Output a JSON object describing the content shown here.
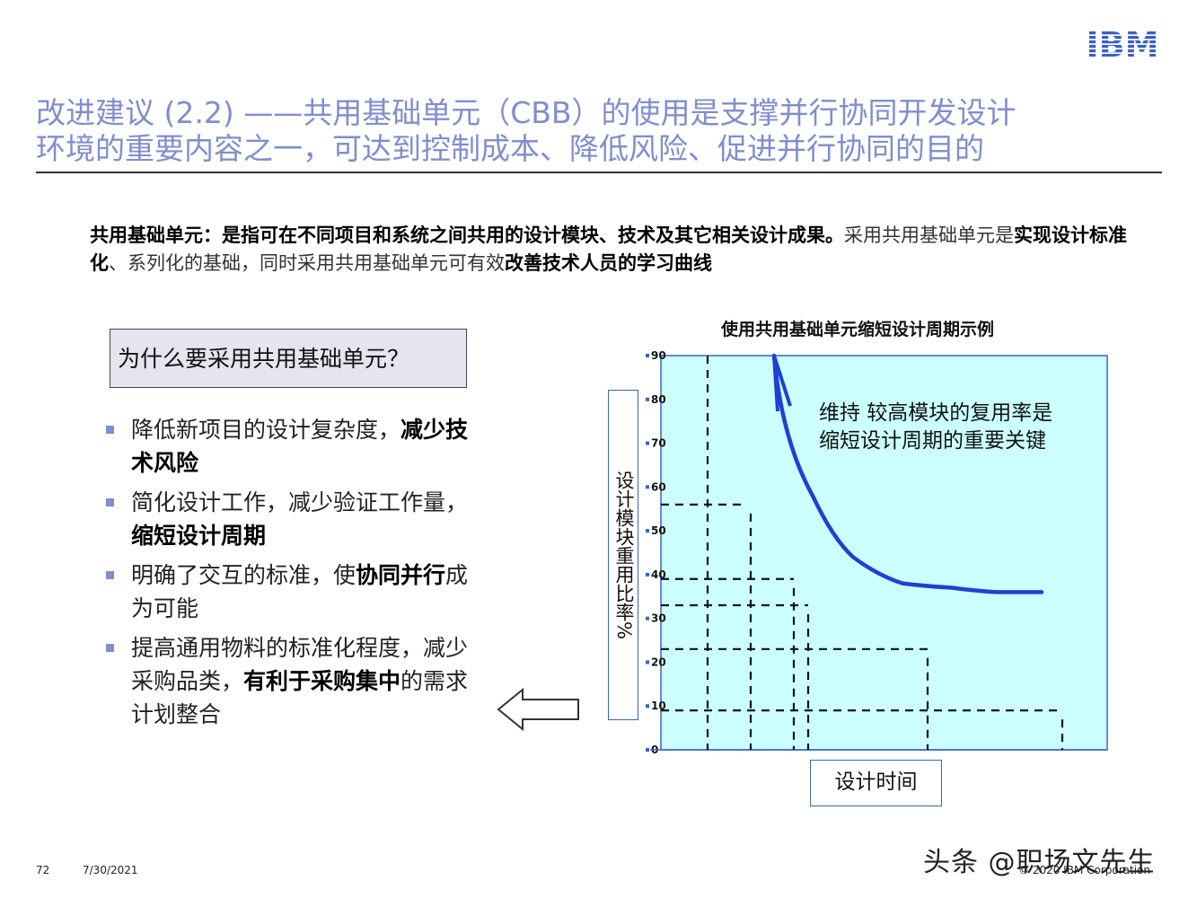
{
  "brand": {
    "logo_text": "IBM",
    "color": "#3a5fc8"
  },
  "header": {
    "title_line1": "改进建议 (2.2) ——共用基础单元（CBB）的使用是支撑并行协同开发设计",
    "title_line2": "环境的重要内容之一，可达到控制成本、降低风险、促进并行协同的目的",
    "title_color": "#7f8ed0"
  },
  "intro": {
    "part1_bold": "共用基础单元：是指可在不同项目和系统之间共用的设计模块、技术及其它相关设计成果。",
    "part2": "采用共用基础单元是",
    "part3_bold": "实现设计标准化",
    "part4": "、系列化的基础，同时采用共用基础单元可有效",
    "part5_bold": "改善技术人员的学习曲线"
  },
  "why": {
    "question": "为什么要采用共用基础单元？"
  },
  "bullets": [
    {
      "text": "降低新项目的设计复杂度，",
      "bold": "减少技术风险",
      "tail": ""
    },
    {
      "text": "简化设计工作，减少验证工作量，",
      "bold": "缩短设计周期",
      "tail": ""
    },
    {
      "text": "明确了交互的标准，使",
      "bold": "协同并行",
      "tail": "成为可能"
    },
    {
      "text": "提高通用物料的标准化程度，减少采购品类，",
      "bold": "有利于采购集中",
      "tail": "的需求计划整合"
    }
  ],
  "chart_data": {
    "type": "line",
    "title": "使用共用基础单元缩短设计周期示例",
    "ylabel": "设计模块重用比率%",
    "xlabel": "设计时间",
    "ylim": [
      0,
      90
    ],
    "yticks": [
      "0",
      "10",
      "20",
      "30",
      "40",
      "50",
      "60",
      "70",
      "80",
      "90"
    ],
    "annotation": [
      "维持 较高模块的复用率是",
      "缩短设计周期的重要关键"
    ],
    "background": "#ccffff",
    "curve_color": "#1f3fd6",
    "series": [
      {
        "values": [
          90,
          58,
          44,
          38,
          37,
          36,
          36
        ]
      }
    ],
    "step_levels": [
      56,
      39,
      33,
      23,
      9
    ]
  },
  "footer": {
    "page": "72",
    "date": "7/30/2021",
    "copyright": "© 2020 IBM Corporation",
    "watermark": "头条 @职场文先生"
  }
}
